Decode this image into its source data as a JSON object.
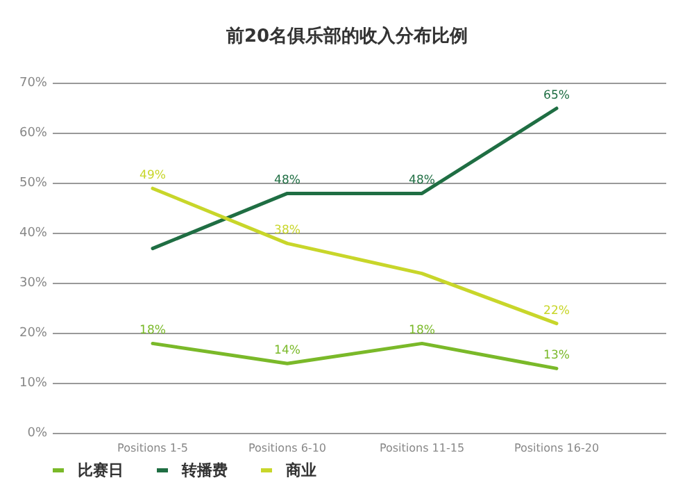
{
  "chart_data": {
    "type": "line",
    "title": "前20名俱乐部的收入分布比例",
    "categories": [
      "Positions 1-5",
      "Positions 6-10",
      "Positions 11-15",
      "Positions 16-20"
    ],
    "series": [
      {
        "name": "比赛日",
        "color": "#7ab929",
        "values": [
          18,
          14,
          18,
          13
        ],
        "value_labels": [
          "18%",
          "14%",
          "18%",
          "13%"
        ]
      },
      {
        "name": "转播费",
        "color": "#1f6e43",
        "values": [
          37,
          48,
          48,
          65
        ],
        "value_labels": [
          null,
          "48%",
          "48%",
          "65%"
        ]
      },
      {
        "name": "商业",
        "color": "#c8d62a",
        "values": [
          49,
          38,
          32,
          22
        ],
        "value_labels": [
          "49%",
          "38%",
          null,
          "22%"
        ]
      }
    ],
    "ylim": [
      0,
      70
    ],
    "yticks": [
      {
        "value": 0,
        "label": "0%"
      },
      {
        "value": 10,
        "label": "10%"
      },
      {
        "value": 20,
        "label": "20%"
      },
      {
        "value": 30,
        "label": "30%"
      },
      {
        "value": 40,
        "label": "40%"
      },
      {
        "value": 50,
        "label": "50%"
      },
      {
        "value": 60,
        "label": "60%"
      },
      {
        "value": 70,
        "label": "70%"
      }
    ],
    "grid": "y",
    "legend": "bottom left",
    "marker": "none",
    "line_style": "solid"
  }
}
